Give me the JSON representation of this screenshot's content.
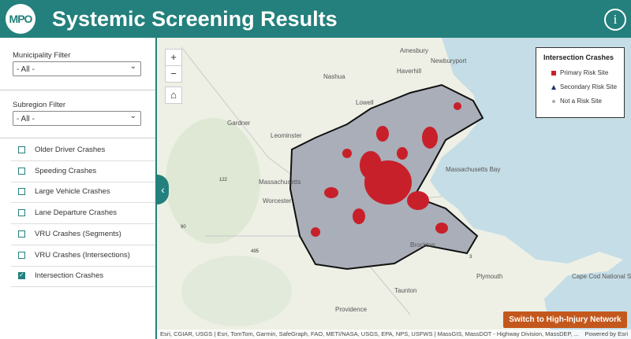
{
  "header": {
    "logo": "MPO",
    "title": "Systemic Screening Results",
    "info": "i"
  },
  "sidebar": {
    "filters": [
      {
        "label": "Municipality Filter",
        "value": "- All -"
      },
      {
        "label": "Subregion Filter",
        "value": "- All -"
      }
    ],
    "layers": [
      {
        "label": "Older Driver Crashes",
        "checked": false
      },
      {
        "label": "Speeding Crashes",
        "checked": false
      },
      {
        "label": "Large Vehicle Crashes",
        "checked": false
      },
      {
        "label": "Lane Departure Crashes",
        "checked": false
      },
      {
        "label": "VRU Crashes (Segments)",
        "checked": false
      },
      {
        "label": "VRU Crashes (Intersections)",
        "checked": false
      },
      {
        "label": "Intersection Crashes",
        "checked": true
      }
    ]
  },
  "map": {
    "zoom_in": "+",
    "zoom_out": "−",
    "places": [
      "Amesbury",
      "Newburyport",
      "Haverhill",
      "Nashua",
      "Lowell",
      "Gardner",
      "Leominster",
      "Massachusetts",
      "Worcester",
      "Massachusetts Bay",
      "Brockton",
      "Taunton",
      "Providence",
      "Plymouth",
      "Cape Cod National Seashore",
      "122",
      "90",
      "495",
      "3"
    ],
    "legend": {
      "title": "Intersection Crashes",
      "items": [
        "Primary Risk Site",
        "Secondary Risk Site",
        "Not a Risk Site"
      ]
    },
    "attribution": "Esri, CGIAR, USGS | Esri, TomTom, Garmin, SafeGraph, FAO, METI/NASA, USGS, EPA, NPS, USFWS | MassGIS, MassDOT - Highway Division, MassDEP, ...",
    "powered_by": "Powered by Esri"
  },
  "button": "Switch to High-Injury Network"
}
